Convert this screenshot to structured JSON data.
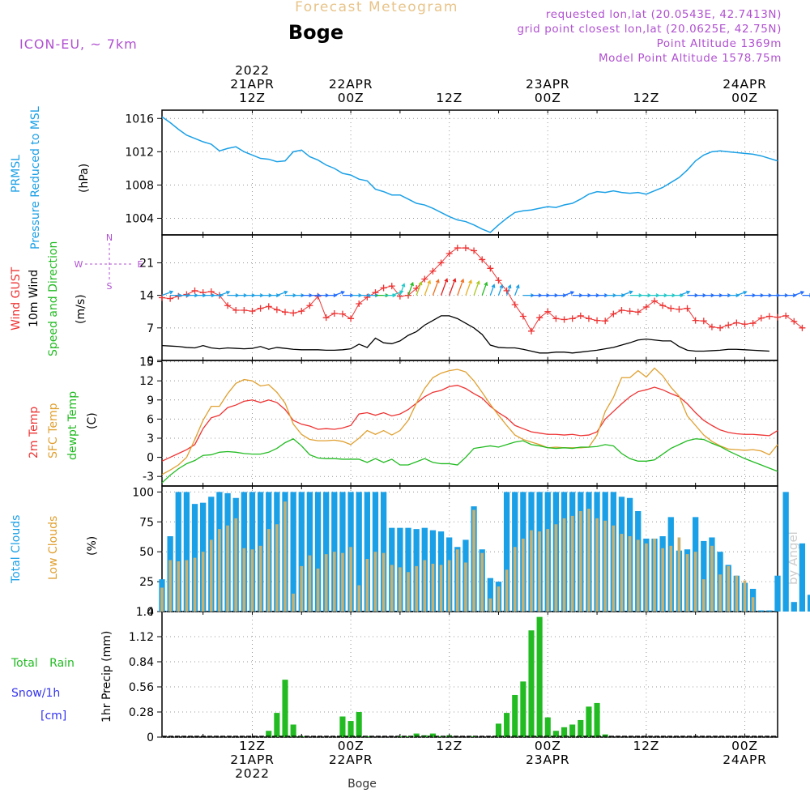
{
  "header": {
    "title": "Forecast Meteogram",
    "location": "Boge",
    "model": "ICON-EU, ~ 7km",
    "requested": "requested lon,lat (20.0543E, 42.7413N)",
    "gridpoint": "grid point closest lon,lat (20.0625E, 42.75N)",
    "point_alt": "Point Altitude 1369m",
    "model_alt": "Model Point Altitude 1578.75m"
  },
  "footer": {
    "location": "Boge",
    "watermark": "by Angel"
  },
  "colors": {
    "pressure": "#1aa0e6",
    "gust": "#ee3333",
    "wind": "#000000",
    "temp2m": "#ee3333",
    "sfc": "#e0a030",
    "dewpt": "#22bb22",
    "total_clouds": "#1aa0e6",
    "low_clouds": "#c8b070",
    "rain": "#22bb22",
    "snow": "#3333ee",
    "purple": "#b050d0",
    "orange": "#e8b040"
  },
  "time_axis": {
    "start_hour": 0,
    "end_hour": 75,
    "step_hours": 1,
    "top_labels": [
      {
        "hour": 11,
        "lines": [
          "2022",
          "21APR",
          "12Z"
        ]
      },
      {
        "hour": 23,
        "lines": [
          "22APR",
          "00Z"
        ]
      },
      {
        "hour": 35,
        "lines": [
          "12Z"
        ]
      },
      {
        "hour": 47,
        "lines": [
          "23APR",
          "00Z"
        ]
      },
      {
        "hour": 59,
        "lines": [
          "12Z"
        ]
      },
      {
        "hour": 71,
        "lines": [
          "24APR",
          "00Z"
        ]
      }
    ],
    "bottom_labels": [
      {
        "hour": 11,
        "lines": [
          "12Z",
          "21APR",
          "2022"
        ]
      },
      {
        "hour": 23,
        "lines": [
          "00Z",
          "22APR"
        ]
      },
      {
        "hour": 35,
        "lines": [
          "12Z"
        ]
      },
      {
        "hour": 47,
        "lines": [
          "00Z",
          "23APR"
        ]
      },
      {
        "hour": 59,
        "lines": [
          "12Z"
        ]
      },
      {
        "hour": 71,
        "lines": [
          "00Z",
          "24APR"
        ]
      }
    ]
  },
  "panel_labels": {
    "pressure": {
      "left": [
        "PRMSL",
        "Pressure Reduced to MSL"
      ],
      "unit": "(hPa)"
    },
    "wind": {
      "gust": "Wind GUST",
      "wind": "10m Wind",
      "dir": "Speed and Direction",
      "unit": "(m/s)",
      "compass_n": "N",
      "compass_s": "S",
      "compass_w": "W",
      "compass_e": "E"
    },
    "temp": {
      "t2m": "2m Temp",
      "sfc": "SFC Temp",
      "dew": "dewpt Temp",
      "unit": "(C)"
    },
    "clouds": {
      "total": "Total Clouds",
      "low": "Low Clouds",
      "unit": "(%)"
    },
    "precip": {
      "rain": "Total Rain",
      "snow": "Snow/1h",
      "snow_unit": "[cm]",
      "ylabel": "1hr Precip (mm)"
    }
  },
  "chart_data": [
    {
      "type": "line",
      "name": "pressure",
      "ylim": [
        1002,
        1017
      ],
      "yticks": [
        1004,
        1008,
        1012,
        1016
      ],
      "series": [
        {
          "name": "PRMSL",
          "values": [
            1016.2,
            1015.5,
            1014.7,
            1014.0,
            1013.6,
            1013.2,
            1012.9,
            1012.1,
            1012.4,
            1012.6,
            1012.0,
            1011.6,
            1011.2,
            1011.1,
            1010.8,
            1010.9,
            1012.0,
            1012.2,
            1011.4,
            1011.0,
            1010.4,
            1010.0,
            1009.4,
            1009.2,
            1008.7,
            1008.5,
            1007.5,
            1007.2,
            1006.8,
            1006.8,
            1006.3,
            1005.8,
            1005.6,
            1005.2,
            1004.7,
            1004.2,
            1003.8,
            1003.6,
            1003.2,
            1002.7,
            1002.3,
            1003.2,
            1004.0,
            1004.7,
            1004.9,
            1005.0,
            1005.2,
            1005.4,
            1005.3,
            1005.6,
            1005.8,
            1006.3,
            1006.9,
            1007.2,
            1007.1,
            1007.3,
            1007.1,
            1007.0,
            1007.1,
            1006.9,
            1007.3,
            1007.7,
            1008.3,
            1008.9,
            1009.8,
            1010.9,
            1011.6,
            1012.0,
            1012.1,
            1012.0,
            1011.9,
            1011.8,
            1011.7,
            1011.5,
            1011.2,
            1010.9
          ]
        }
      ]
    },
    {
      "type": "line",
      "name": "wind",
      "ylim": [
        0,
        27
      ],
      "yticks": [
        0,
        7,
        14,
        21
      ],
      "series": [
        {
          "name": "Wind GUST",
          "values": [
            13.5,
            13.3,
            13.8,
            14.2,
            15.0,
            14.6,
            14.8,
            14.0,
            11.8,
            10.8,
            10.8,
            10.6,
            11.2,
            11.6,
            10.9,
            10.4,
            10.2,
            10.6,
            11.8,
            13.8,
            9.2,
            10.1,
            10.0,
            9.0,
            12.2,
            13.6,
            14.6,
            15.6,
            16.0,
            13.8,
            14.0,
            15.5,
            17.5,
            19.2,
            21.0,
            23.0,
            24.2,
            24.2,
            23.6,
            21.7,
            19.8,
            17.2,
            15.0,
            12.0,
            9.5,
            6.3,
            9.2,
            10.5,
            9.0,
            8.8,
            9.0,
            9.6,
            9.0,
            8.6,
            8.5,
            10.0,
            10.8,
            10.6,
            10.4,
            11.5,
            12.8,
            11.8,
            11.2,
            11.0,
            11.2,
            8.6,
            8.5,
            7.2,
            7.0,
            7.6,
            8.1,
            7.8,
            8.0,
            9.1,
            9.5,
            9.3,
            9.6,
            8.4,
            7.0
          ]
        },
        {
          "name": "10m Wind",
          "values": [
            3.2,
            3.1,
            3.0,
            2.8,
            2.7,
            3.2,
            2.7,
            2.5,
            2.7,
            2.6,
            2.5,
            2.6,
            3.0,
            2.4,
            2.8,
            2.6,
            2.4,
            2.3,
            2.3,
            2.3,
            2.2,
            2.2,
            2.3,
            2.5,
            3.5,
            2.8,
            4.8,
            3.8,
            3.6,
            4.2,
            5.4,
            6.2,
            7.6,
            8.6,
            9.6,
            9.6,
            9.0,
            8.0,
            7.0,
            5.6,
            3.3,
            2.8,
            2.7,
            2.7,
            2.4,
            2.0,
            1.6,
            1.6,
            1.8,
            1.8,
            1.6,
            1.8,
            2.0,
            2.2,
            2.5,
            2.8,
            3.3,
            3.8,
            4.4,
            4.6,
            4.4,
            4.2,
            4.2,
            3.0,
            2.2,
            2.0,
            2.0,
            2.1,
            2.2,
            2.4,
            2.4,
            2.3,
            2.2,
            2.1,
            2.0
          ]
        }
      ]
    },
    {
      "type": "line",
      "name": "temperature",
      "ylim": [
        -4.5,
        15.2
      ],
      "yticks": [
        -3,
        0,
        3,
        6,
        9,
        12,
        15
      ],
      "series": [
        {
          "name": "2m Temp",
          "values": [
            -0.6,
            0.0,
            0.6,
            1.2,
            2.0,
            4.5,
            6.2,
            6.6,
            7.8,
            8.2,
            8.8,
            9.0,
            8.6,
            9.0,
            8.6,
            7.5,
            5.8,
            5.2,
            4.9,
            4.4,
            4.5,
            4.4,
            4.6,
            5.0,
            6.8,
            7.0,
            6.6,
            7.0,
            6.5,
            6.8,
            7.5,
            8.5,
            9.5,
            10.2,
            10.5,
            11.1,
            11.3,
            10.8,
            10.0,
            9.3,
            8.0,
            7.0,
            6.2,
            5.0,
            4.5,
            4.0,
            3.8,
            3.6,
            3.6,
            3.5,
            3.6,
            3.4,
            3.5,
            4.0,
            6.0,
            7.2,
            8.4,
            9.5,
            10.3,
            10.6,
            11.0,
            10.6,
            10.0,
            9.5,
            8.4,
            7.0,
            5.8,
            5.0,
            4.3,
            3.9,
            3.7,
            3.6,
            3.6,
            3.5,
            3.4,
            4.2
          ]
        },
        {
          "name": "SFC Temp",
          "values": [
            -2.7,
            -2.0,
            -1.2,
            0.0,
            2.8,
            5.8,
            8.0,
            8.0,
            10.0,
            11.6,
            12.2,
            12.0,
            11.2,
            11.4,
            10.2,
            8.5,
            5.2,
            3.6,
            2.8,
            2.6,
            2.6,
            2.7,
            2.5,
            2.0,
            3.0,
            4.2,
            3.6,
            4.2,
            3.5,
            4.2,
            5.8,
            8.5,
            10.8,
            12.5,
            13.2,
            13.6,
            13.8,
            13.4,
            12.0,
            10.2,
            8.3,
            6.6,
            5.0,
            3.5,
            2.8,
            2.4,
            2.0,
            1.5,
            1.6,
            1.5,
            1.5,
            1.5,
            1.6,
            3.5,
            7.2,
            9.4,
            12.5,
            12.5,
            13.6,
            12.6,
            14.0,
            12.8,
            11.0,
            9.6,
            6.5,
            5.0,
            3.5,
            2.5,
            1.8,
            1.3,
            1.2,
            1.1,
            1.2,
            1.0,
            0.4,
            2.0
          ]
        },
        {
          "name": "dewpt Temp",
          "values": [
            -4.0,
            -2.8,
            -1.8,
            -1.0,
            -0.5,
            0.3,
            0.4,
            0.8,
            0.9,
            0.8,
            0.6,
            0.5,
            0.5,
            0.8,
            1.4,
            2.3,
            2.9,
            1.8,
            0.4,
            -0.1,
            -0.2,
            -0.2,
            -0.3,
            -0.3,
            -0.3,
            -0.8,
            -0.2,
            -0.8,
            -0.3,
            -1.2,
            -1.2,
            -0.7,
            -0.2,
            -0.8,
            -1.0,
            -1.0,
            -1.2,
            0.0,
            1.4,
            1.6,
            1.8,
            1.6,
            2.0,
            2.4,
            2.6,
            2.0,
            1.8,
            1.5,
            1.4,
            1.5,
            1.4,
            1.6,
            1.6,
            1.7,
            2.0,
            1.8,
            0.6,
            -0.2,
            -0.6,
            -0.6,
            -0.4,
            0.5,
            1.4,
            2.0,
            2.6,
            2.9,
            2.8,
            2.2,
            1.7,
            1.0,
            0.4,
            -0.2,
            -0.7,
            -1.2,
            -1.7,
            -2.2
          ]
        }
      ]
    },
    {
      "type": "bar",
      "name": "clouds",
      "ylim": [
        0,
        105
      ],
      "yticks": [
        0,
        25,
        50,
        75,
        100
      ],
      "series": [
        {
          "name": "Total Clouds",
          "values": [
            27,
            63,
            100,
            100,
            90,
            91,
            96,
            100,
            99,
            95,
            100,
            100,
            100,
            100,
            100,
            100,
            100,
            100,
            100,
            100,
            100,
            100,
            100,
            100,
            100,
            100,
            100,
            100,
            70,
            70,
            70,
            69,
            70,
            68,
            67,
            62,
            54,
            60,
            88,
            52,
            28,
            25,
            100,
            100,
            100,
            100,
            100,
            100,
            100,
            100,
            100,
            100,
            100,
            100,
            100,
            100,
            96,
            95,
            84,
            61,
            61,
            63,
            79,
            51,
            52,
            79,
            59,
            62,
            50,
            39,
            30,
            24,
            19,
            1,
            1,
            30,
            100,
            8,
            57,
            14
          ]
        },
        {
          "name": "Low Clouds",
          "values": [
            20,
            43,
            42,
            43,
            45,
            50,
            60,
            69,
            72,
            78,
            53,
            52,
            55,
            69,
            73,
            92,
            15,
            38,
            47,
            36,
            48,
            50,
            49,
            54,
            22,
            44,
            50,
            49,
            39,
            37,
            33,
            38,
            43,
            40,
            39,
            43,
            52,
            41,
            85,
            49,
            11,
            21,
            35,
            54,
            61,
            68,
            67,
            69,
            73,
            78,
            80,
            84,
            86,
            78,
            76,
            72,
            65,
            63,
            60,
            57,
            61,
            53,
            55,
            62,
            48,
            50,
            27,
            55,
            31,
            38,
            30,
            26,
            12,
            0,
            0,
            0,
            0,
            0,
            0,
            0
          ]
        }
      ]
    },
    {
      "type": "bar",
      "name": "precipitation",
      "ylim": [
        0,
        1.4
      ],
      "yticks": [
        0,
        0.28,
        0.56,
        0.84,
        1.12,
        1.4
      ],
      "series": [
        {
          "name": "Total Rain",
          "values": [
            0,
            0,
            0,
            0,
            0,
            0,
            0,
            0,
            0,
            0,
            0,
            0,
            0,
            0.07,
            0.27,
            0.64,
            0.14,
            0.01,
            0,
            0,
            0,
            0,
            0.23,
            0.18,
            0.28,
            0.01,
            0,
            0,
            0,
            0.01,
            0.01,
            0.04,
            0.02,
            0.04,
            0.01,
            0.02,
            0,
            0,
            0.01,
            0,
            0,
            0.15,
            0.27,
            0.47,
            0.62,
            1.19,
            1.34,
            0.22,
            0.07,
            0.11,
            0.14,
            0.19,
            0.34,
            0.38,
            0.03,
            0,
            0,
            0,
            0,
            0,
            0,
            0,
            0,
            0,
            0,
            0,
            0,
            0,
            0,
            0,
            0,
            0,
            0,
            0,
            0,
            0
          ]
        },
        {
          "name": "Snow/1h",
          "values": [
            0,
            0,
            0,
            0,
            0,
            0,
            0,
            0,
            0,
            0,
            0,
            0,
            0,
            0,
            0,
            0,
            0,
            0,
            0,
            0,
            0,
            0,
            0,
            0,
            0,
            0,
            0,
            0,
            0,
            0,
            0,
            0,
            0,
            0,
            0,
            0,
            0,
            0,
            0,
            0,
            0,
            0,
            0,
            0,
            0,
            0,
            0,
            0,
            0,
            0,
            0,
            0,
            0,
            0,
            0,
            0,
            0,
            0,
            0,
            0,
            0,
            0,
            0,
            0,
            0,
            0,
            0,
            0,
            0,
            0,
            0,
            0,
            0,
            0,
            0,
            0
          ]
        }
      ]
    }
  ]
}
